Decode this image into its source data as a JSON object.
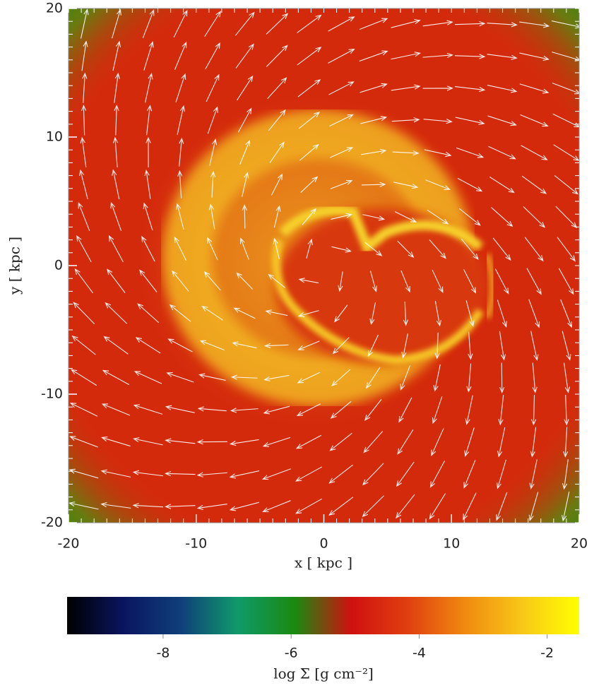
{
  "chart_data": {
    "type": "density_map",
    "xlabel": "x [ kpc ]",
    "ylabel": "y [ kpc ]",
    "xlim": [
      -20,
      20
    ],
    "ylim": [
      -20,
      20
    ],
    "xticks": [
      -20,
      -10,
      0,
      10,
      20
    ],
    "yticks": [
      -20,
      -10,
      0,
      10,
      20
    ],
    "colorbar": {
      "label": "log Σ [g cm⁻²]",
      "clim": [
        -9.5,
        -1.5
      ],
      "ticks": [
        -8,
        -6,
        -4,
        -2
      ],
      "colormap": [
        "#000000",
        "#0a1560",
        "#0f3f7a",
        "#109a6a",
        "#1a8a10",
        "#d01010",
        "#e04010",
        "#f08a10",
        "#f8c818",
        "#ffff00"
      ]
    }
  }
}
